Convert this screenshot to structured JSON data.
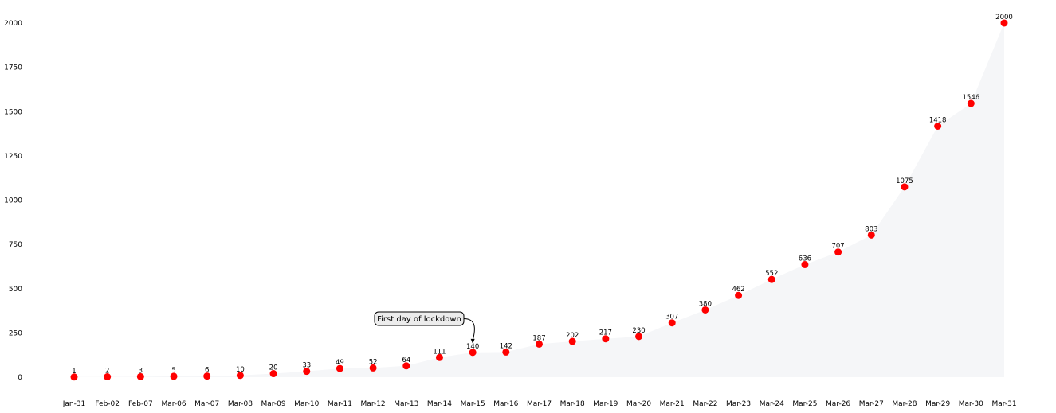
{
  "chart_data": {
    "type": "area",
    "categories": [
      "Jan-31",
      "Feb-02",
      "Feb-07",
      "Mar-06",
      "Mar-07",
      "Mar-08",
      "Mar-09",
      "Mar-10",
      "Mar-11",
      "Mar-12",
      "Mar-13",
      "Mar-14",
      "Mar-15",
      "Mar-16",
      "Mar-17",
      "Mar-18",
      "Mar-19",
      "Mar-20",
      "Mar-21",
      "Mar-22",
      "Mar-23",
      "Mar-24",
      "Mar-25",
      "Mar-26",
      "Mar-27",
      "Mar-28",
      "Mar-29",
      "Mar-30",
      "Mar-31"
    ],
    "values": [
      1,
      2,
      3,
      5,
      6,
      10,
      20,
      33,
      49,
      52,
      64,
      111,
      140,
      142,
      187,
      202,
      217,
      230,
      307,
      380,
      462,
      552,
      636,
      707,
      803,
      1075,
      1418,
      1546,
      2000
    ],
    "ylim": [
      0,
      2000
    ],
    "yticks": [
      0,
      250,
      500,
      750,
      1000,
      1250,
      1500,
      1750,
      2000
    ],
    "grid": false,
    "marker_color": "#ff0000",
    "fill_color": "#f5f6f8",
    "annotation": {
      "text": "First day of lockdown",
      "category": "Mar-15"
    }
  }
}
